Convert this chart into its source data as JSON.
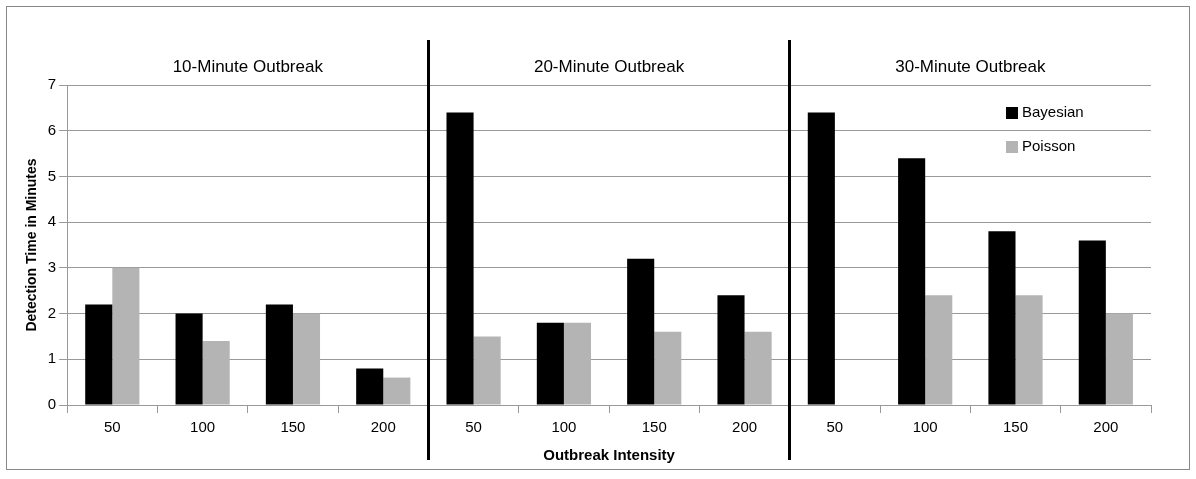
{
  "chart_data": {
    "type": "bar",
    "xlabel": "Outbreak Intensity",
    "ylabel": "Detection Time in Minutes",
    "categories": [
      "50",
      "100",
      "150",
      "200",
      "50",
      "100",
      "150",
      "200",
      "50",
      "100",
      "150",
      "200"
    ],
    "series": [
      {
        "name": "Bayesian",
        "color": "#000000",
        "values": [
          2.2,
          2.0,
          2.2,
          0.8,
          6.4,
          1.8,
          3.2,
          2.4,
          6.4,
          5.4,
          3.8,
          3.6
        ]
      },
      {
        "name": "Poisson",
        "color": "#b4b4b4",
        "values": [
          3.0,
          1.4,
          2.0,
          0.6,
          1.5,
          1.8,
          1.6,
          1.6,
          null,
          2.4,
          2.4,
          2.0
        ]
      }
    ],
    "ylim": [
      0,
      7
    ],
    "yticks": [
      0,
      1,
      2,
      3,
      4,
      5,
      6,
      7
    ],
    "grid": "y",
    "legend": "top right",
    "annotations": [
      "10-Minute Outbreak",
      "20-Minute Outbreak",
      "30-Minute Outbreak"
    ]
  }
}
